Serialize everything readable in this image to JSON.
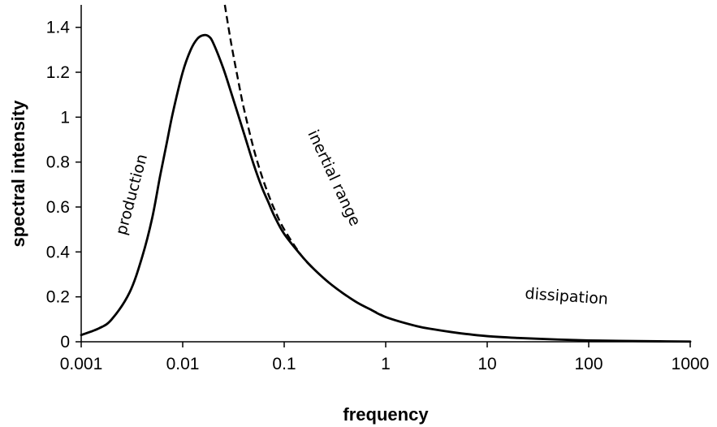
{
  "chart_data": {
    "type": "line",
    "title": "",
    "xlabel": "frequency",
    "ylabel": "spectral intensity",
    "xscale": "log",
    "xlim": [
      0.001,
      1000
    ],
    "ylim": [
      0,
      1.5
    ],
    "grid": false,
    "legend": "none",
    "xticks": [
      "0.001",
      "0.01",
      "0.1",
      "1",
      "10",
      "100",
      "1000"
    ],
    "yticks": [
      "0",
      "0.2",
      "0.4",
      "0.6",
      "0.8",
      "1",
      "1.2",
      "1.4"
    ],
    "series": [
      {
        "style": "solid",
        "color": "#000000",
        "x": [
          0.001,
          0.0015,
          0.002,
          0.003,
          0.004,
          0.005,
          0.006,
          0.007,
          0.008,
          0.01,
          0.012,
          0.014,
          0.016,
          0.018,
          0.02,
          0.025,
          0.03,
          0.04,
          0.05,
          0.06,
          0.07,
          0.08,
          0.1,
          0.15,
          0.2,
          0.3,
          0.5,
          0.7,
          1,
          2,
          3,
          5,
          10,
          20,
          50,
          100,
          200,
          500,
          1000
        ],
        "y": [
          0.03,
          0.06,
          0.1,
          0.22,
          0.38,
          0.55,
          0.74,
          0.89,
          1.02,
          1.2,
          1.3,
          1.35,
          1.365,
          1.36,
          1.33,
          1.22,
          1.11,
          0.93,
          0.79,
          0.69,
          0.62,
          0.56,
          0.48,
          0.38,
          0.32,
          0.25,
          0.18,
          0.145,
          0.11,
          0.07,
          0.055,
          0.04,
          0.025,
          0.017,
          0.01,
          0.006,
          0.004,
          0.002,
          0.001
        ]
      },
      {
        "style": "dashed",
        "color": "#000000",
        "x": [
          0.026,
          0.03,
          0.035,
          0.04,
          0.05,
          0.06,
          0.07,
          0.08,
          0.1,
          0.15,
          0.2,
          0.3,
          0.5,
          1
        ],
        "y": [
          1.5,
          1.33,
          1.17,
          1.04,
          0.86,
          0.74,
          0.655,
          0.59,
          0.5,
          0.38,
          0.32,
          0.25,
          0.18,
          0.11
        ]
      }
    ],
    "annotations": [
      {
        "text": "production",
        "x": 0.0035,
        "y": 0.65,
        "rotation": -75
      },
      {
        "text": "inertial range",
        "x": 0.28,
        "y": 0.72,
        "rotation": 65
      },
      {
        "text": "dissipation",
        "x": 60,
        "y": 0.18,
        "rotation": 4
      }
    ]
  }
}
